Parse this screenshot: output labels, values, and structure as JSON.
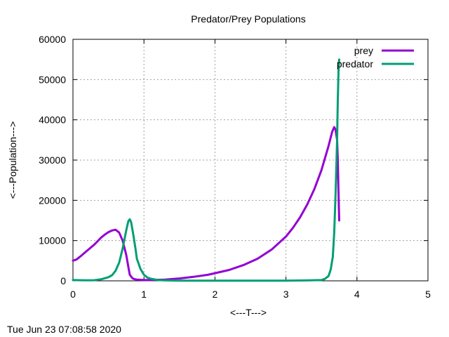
{
  "chart_data": {
    "type": "line",
    "title": "Predator/Prey Populations",
    "xlabel": "<---T--->",
    "ylabel": "<---Population--->",
    "xlim": [
      0,
      5
    ],
    "ylim": [
      0,
      60000
    ],
    "xticks": [
      0,
      1,
      2,
      3,
      4,
      5
    ],
    "yticks": [
      0,
      10000,
      20000,
      30000,
      40000,
      50000,
      60000
    ],
    "grid": true,
    "legend_position": "top-right",
    "series": [
      {
        "name": "prey",
        "color": "#9400d3",
        "x": [
          0,
          0.05,
          0.1,
          0.2,
          0.3,
          0.4,
          0.45,
          0.5,
          0.55,
          0.6,
          0.65,
          0.7,
          0.75,
          0.78,
          0.8,
          0.83,
          0.85,
          0.9,
          1.0,
          1.1,
          1.3,
          1.5,
          1.7,
          1.9,
          2.0,
          2.2,
          2.4,
          2.6,
          2.8,
          3.0,
          3.1,
          3.2,
          3.3,
          3.4,
          3.5,
          3.6,
          3.65,
          3.68,
          3.7,
          3.72,
          3.73,
          3.74,
          3.75
        ],
        "y": [
          5000,
          5300,
          6000,
          7500,
          9000,
          10800,
          11500,
          12100,
          12500,
          12700,
          12000,
          10000,
          6500,
          3500,
          1500,
          800,
          500,
          300,
          200,
          200,
          300,
          600,
          1000,
          1500,
          1900,
          2700,
          3900,
          5500,
          7800,
          11000,
          13200,
          15800,
          19000,
          22800,
          27500,
          33500,
          37000,
          38200,
          37500,
          35000,
          30000,
          22000,
          15000
        ]
      },
      {
        "name": "predator",
        "color": "#009e73",
        "x": [
          0,
          0.1,
          0.2,
          0.3,
          0.4,
          0.5,
          0.55,
          0.6,
          0.65,
          0.7,
          0.75,
          0.78,
          0.8,
          0.82,
          0.85,
          0.88,
          0.9,
          0.95,
          1.0,
          1.05,
          1.1,
          1.2,
          1.3,
          1.5,
          2.0,
          2.5,
          3.0,
          3.3,
          3.5,
          3.55,
          3.6,
          3.63,
          3.66,
          3.68,
          3.7,
          3.72,
          3.73,
          3.74,
          3.75
        ],
        "y": [
          200,
          150,
          130,
          150,
          400,
          900,
          1400,
          2500,
          4500,
          8000,
          12500,
          14800,
          15300,
          14500,
          11500,
          8000,
          5500,
          3000,
          1500,
          800,
          500,
          200,
          100,
          50,
          30,
          30,
          50,
          100,
          200,
          500,
          1200,
          2800,
          6000,
          12000,
          22000,
          35000,
          45000,
          52000,
          55000
        ]
      }
    ]
  },
  "timestamp": "Tue Jun 23 07:08:58 2020"
}
